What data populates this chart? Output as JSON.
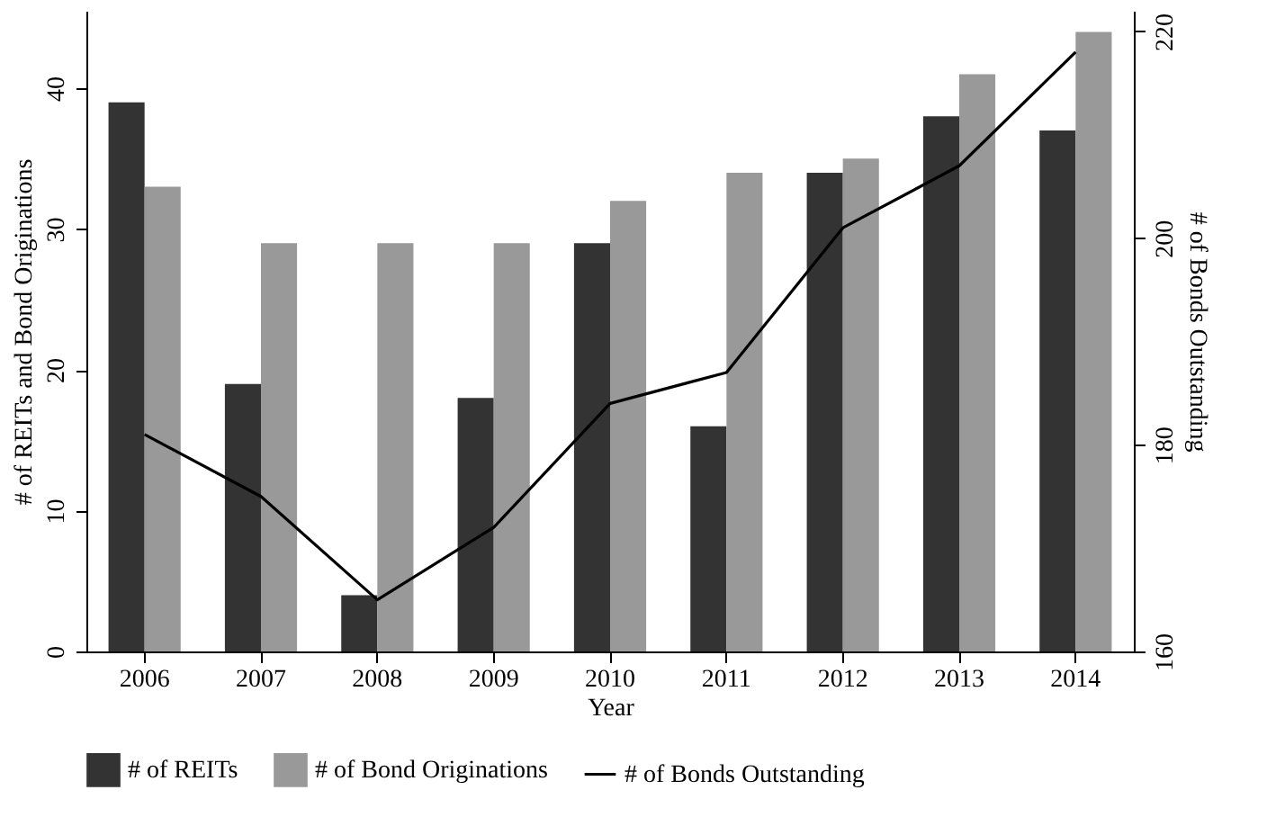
{
  "chart_data": {
    "type": "bar",
    "xlabel": "Year",
    "ylabel": "# of REITs and Bond Originations",
    "y2label": "# of Bonds Outstanding",
    "categories": [
      "2006",
      "2007",
      "2008",
      "2009",
      "2010",
      "2011",
      "2012",
      "2013",
      "2014"
    ],
    "series": [
      {
        "name": "# of REITs",
        "color": "#333333",
        "values": [
          39,
          19,
          4,
          18,
          29,
          16,
          34,
          38,
          37
        ]
      },
      {
        "name": "# of Bond Originations",
        "color": "#999999",
        "values": [
          33,
          29,
          29,
          29,
          32,
          34,
          35,
          41,
          44
        ]
      },
      {
        "name": "# of Bonds Outstanding",
        "type": "line",
        "axis": "y2",
        "color": "#000000",
        "values": [
          181,
          175,
          165,
          172,
          184,
          187,
          201,
          207,
          218
        ]
      }
    ],
    "ylim": [
      0,
      45.5
    ],
    "yticks": [
      0,
      10,
      20,
      30,
      40
    ],
    "y2lim": [
      160,
      222
    ],
    "y2ticks": [
      160,
      180,
      200,
      220
    ],
    "grid": false,
    "legend": "bottom"
  }
}
